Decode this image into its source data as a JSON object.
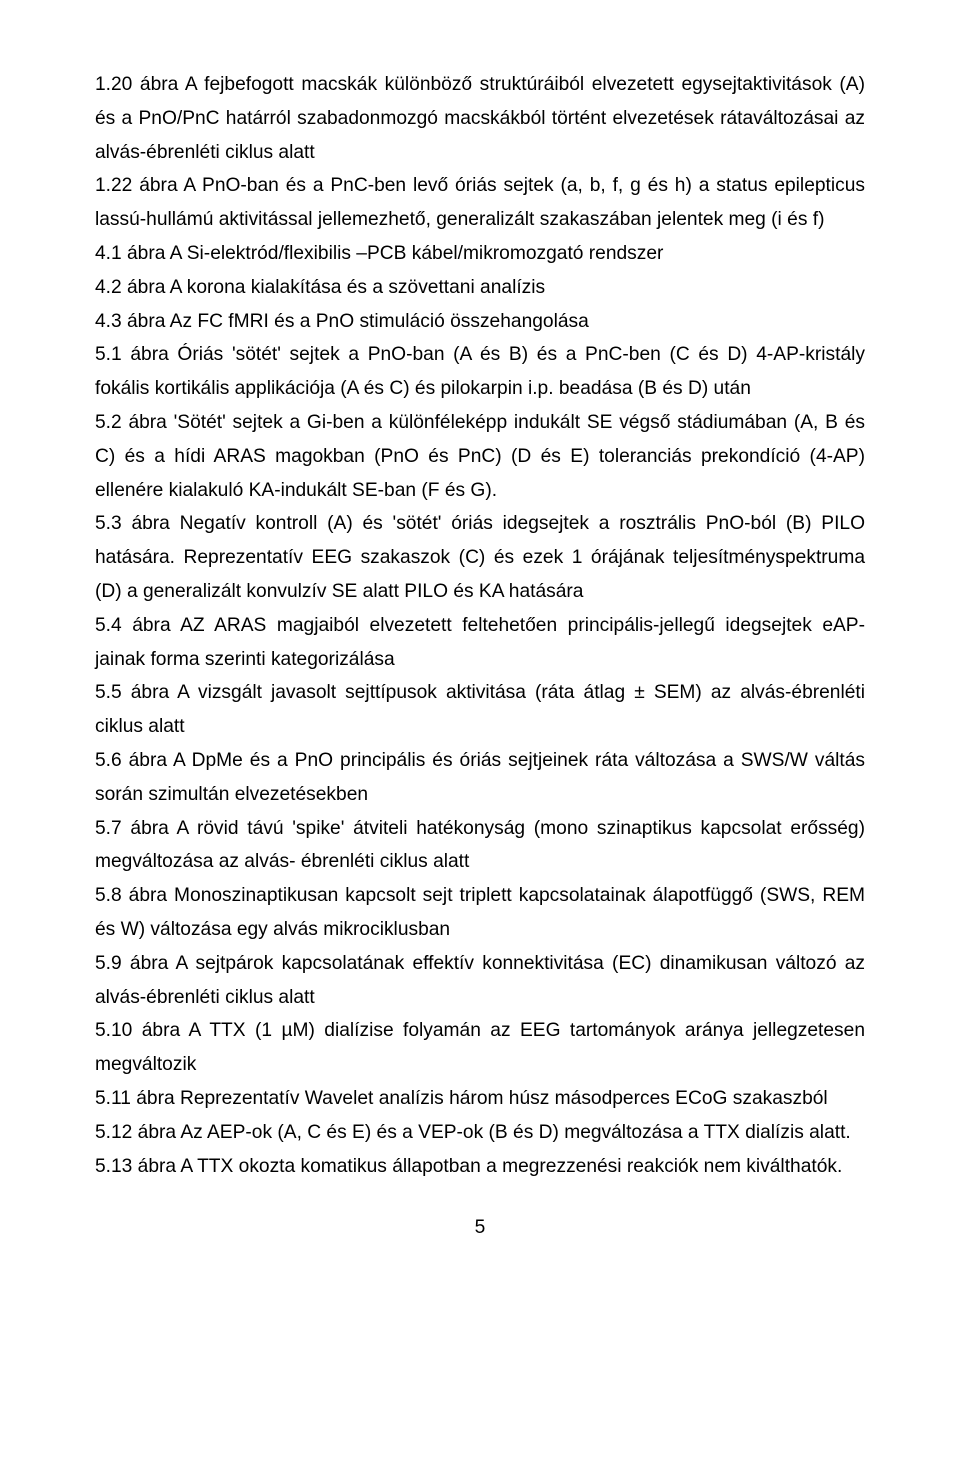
{
  "paragraphs": {
    "p0": "1.20 ábra A fejbefogott macskák különböző struktúráiból elvezetett egysejtaktivitások (A) és a PnO/PnC határról szabadonmozgó macskákból történt elvezetések rátaváltozásai az alvás-ébrenléti ciklus alatt",
    "p1": "1.22 ábra A PnO-ban és a PnC-ben levő óriás sejtek (a, b, f, g és h) a status epilepticus lassú-hullámú aktivitással jellemezhető, generalizált szakaszában jelentek meg (i és f)",
    "p2": "4.1 ábra A Si-elektród/flexibilis –PCB kábel/mikromozgató rendszer",
    "p3": "4.2 ábra A korona kialakítása és a szövettani analízis",
    "p4": "4.3 ábra Az FC fMRI és a PnO stimuláció összehangolása",
    "p5": "5.1 ábra Óriás 'sötét' sejtek a PnO-ban (A és B) és a PnC-ben (C és D) 4-AP-kristály fokális kortikális applikációja (A és C) és pilokarpin i.p. beadása (B és D) után",
    "p6": "5.2 ábra 'Sötét' sejtek a Gi-ben a különféleképp indukált SE végső stádiumában (A, B és C) és a hídi ARAS magokban (PnO és PnC) (D és E) toleranciás prekondíció (4-AP) ellenére kialakuló KA-indukált SE-ban (F és G).",
    "p7": "5.3 ábra Negatív kontroll (A) és 'sötét' óriás idegsejtek a rosztrális PnO-ból (B) PILO hatására. Reprezentatív EEG szakaszok (C) és ezek 1 órájának teljesítményspektruma (D) a generalizált konvulzív SE alatt PILO és KA hatására",
    "p8": "5.4 ábra AZ ARAS magjaiból elvezetett feltehetően principális-jellegű idegsejtek eAP-jainak forma szerinti kategorizálása",
    "p9": "5.5 ábra A vizsgált javasolt sejttípusok aktivitása (ráta átlag ± SEM) az alvás-ébrenléti ciklus alatt",
    "p10": "5.6 ábra A DpMe és a PnO principális és óriás sejtjeinek ráta változása a SWS/W váltás során szimultán elvezetésekben",
    "p11": "5.7 ábra A rövid távú 'spike' átviteli hatékonyság (mono szinaptikus kapcsolat erősség) megváltozása az alvás- ébrenléti ciklus alatt",
    "p12": "5.8 ábra Monoszinaptikusan kapcsolt sejt triplett kapcsolatainak álapotfüggő (SWS, REM és W) változása egy alvás mikrociklusban",
    "p13": "5.9 ábra A sejtpárok kapcsolatának effektív konnektivitása (EC) dinamikusan változó az alvás-ébrenléti ciklus alatt",
    "p14": "5.10 ábra A TTX (1 µM) dialízise folyamán az EEG tartományok aránya jellegzetesen megváltozik",
    "p15": "5.11 ábra Reprezentatív Wavelet analízis három húsz másodperces ECoG szakaszból",
    "p16": "5.12 ábra Az AEP-ok (A, C és E) és a VEP-ok (B és D) megváltozása a TTX dialízis alatt.",
    "p17": "5.13 ábra A TTX okozta komatikus állapotban a megrezzenési reakciók nem kiválthatók."
  },
  "pageNumber": "5"
}
